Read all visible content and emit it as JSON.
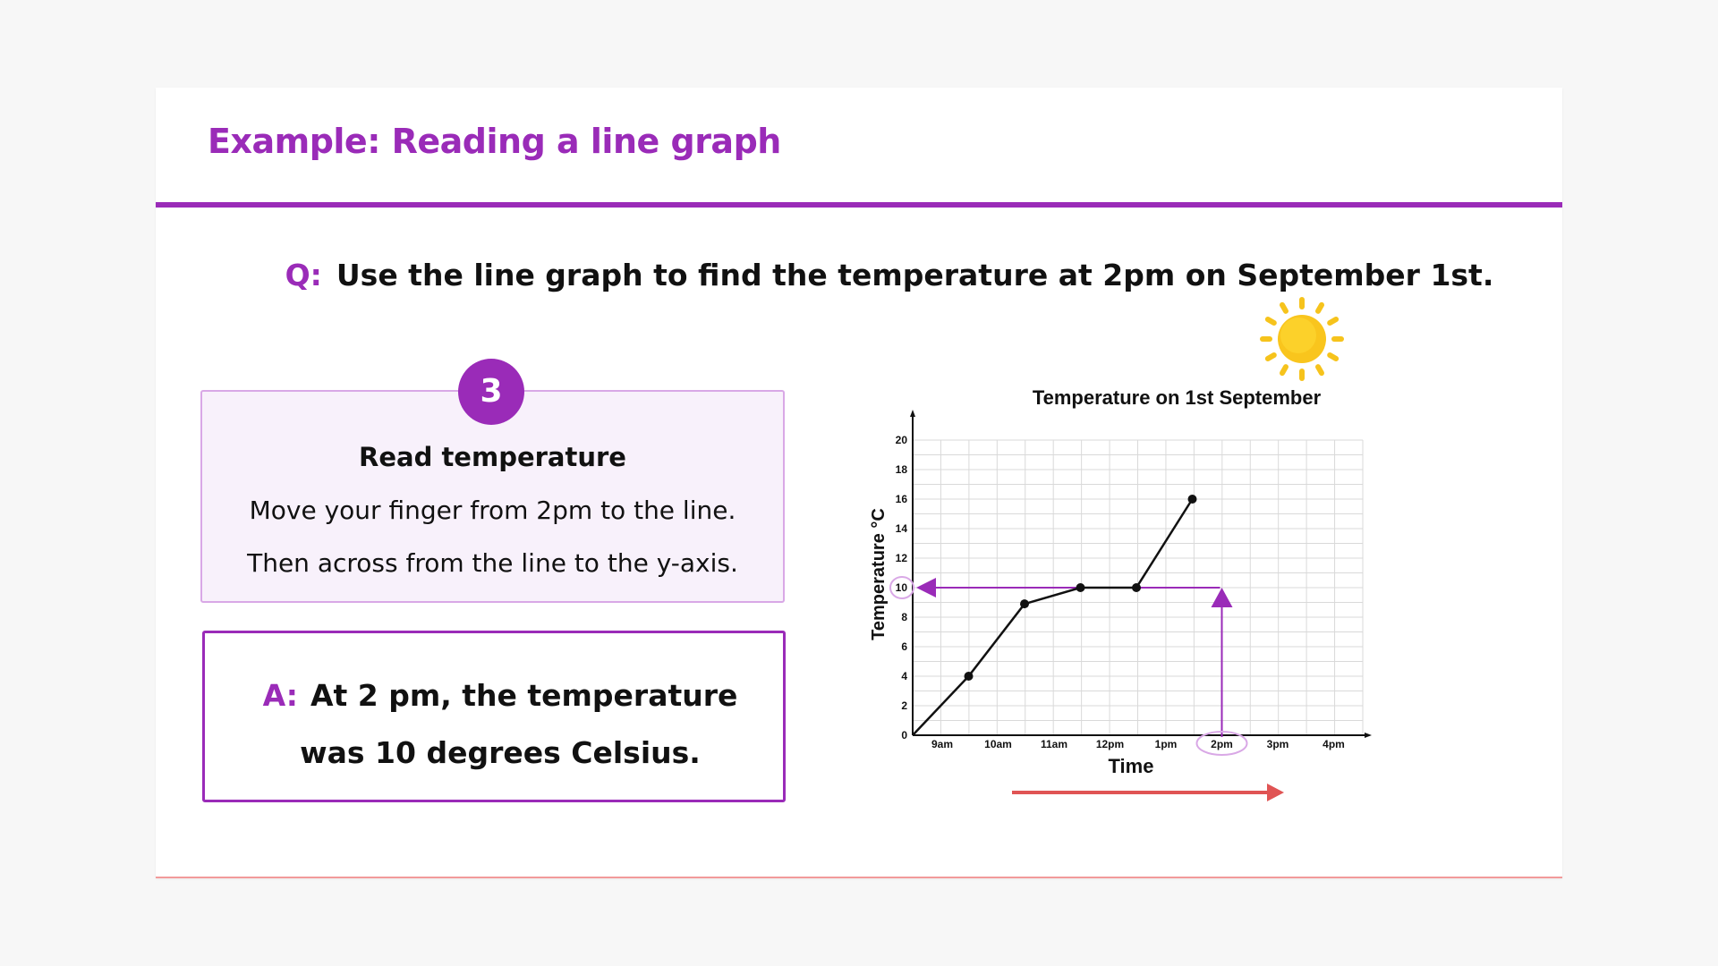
{
  "slide": {
    "title": "Example: Reading a line graph"
  },
  "question": {
    "prefix": "Q:",
    "text": "Use the line graph to find the temperature at 2pm on September 1st."
  },
  "step": {
    "number": "3",
    "heading": "Read temperature",
    "line1": "Move your finger from 2pm to the line.",
    "line2": "Then across from the line to the y-axis."
  },
  "answer": {
    "prefix": "A:",
    "text": "At 2 pm, the temperature was 10 degrees Celsius."
  },
  "decor": {
    "sun_icon": "sun-icon",
    "accent_color": "#9a2bb8",
    "arrow_color": "#e05454"
  },
  "chart_data": {
    "type": "line",
    "title": "Temperature on 1st September",
    "xlabel": "Time",
    "ylabel": "Temperature °C",
    "categories": [
      "9am",
      "10am",
      "11am",
      "12pm",
      "1pm",
      "2pm",
      "3pm",
      "4pm"
    ],
    "x_start": 0,
    "ylim": [
      0,
      20
    ],
    "yticks": [
      0,
      2,
      4,
      6,
      8,
      10,
      12,
      14,
      16,
      18,
      20
    ],
    "grid": true,
    "series": [
      {
        "points": [
          {
            "x": 0,
            "y": 0
          },
          {
            "x": 1.5,
            "y": 4
          },
          {
            "x": 3,
            "y": 8.9
          },
          {
            "x": 4.5,
            "y": 10
          },
          {
            "x": 6,
            "y": 10
          },
          {
            "x": 7.5,
            "y": 16
          }
        ]
      }
    ],
    "highlight": {
      "category": "2pm",
      "value": 10
    }
  }
}
